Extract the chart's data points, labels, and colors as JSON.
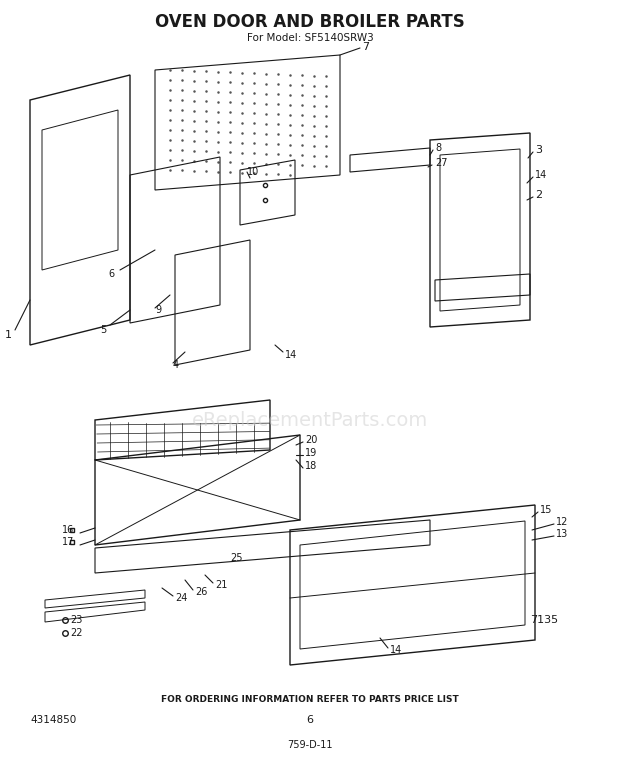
{
  "title": "OVEN DOOR AND BROILER PARTS",
  "subtitle": "For Model: SF5140SRW3",
  "bottom_text": "FOR ORDERING INFORMATION REFER TO PARTS PRICE LIST",
  "page_num": "6",
  "doc_num": "759-D-11",
  "part_num": "4314850",
  "diagram_num": "7135",
  "bg_color": "#ffffff",
  "line_color": "#1a1a1a",
  "watermark": "eReplacementParts.com",
  "watermark_color": "#cccccc"
}
